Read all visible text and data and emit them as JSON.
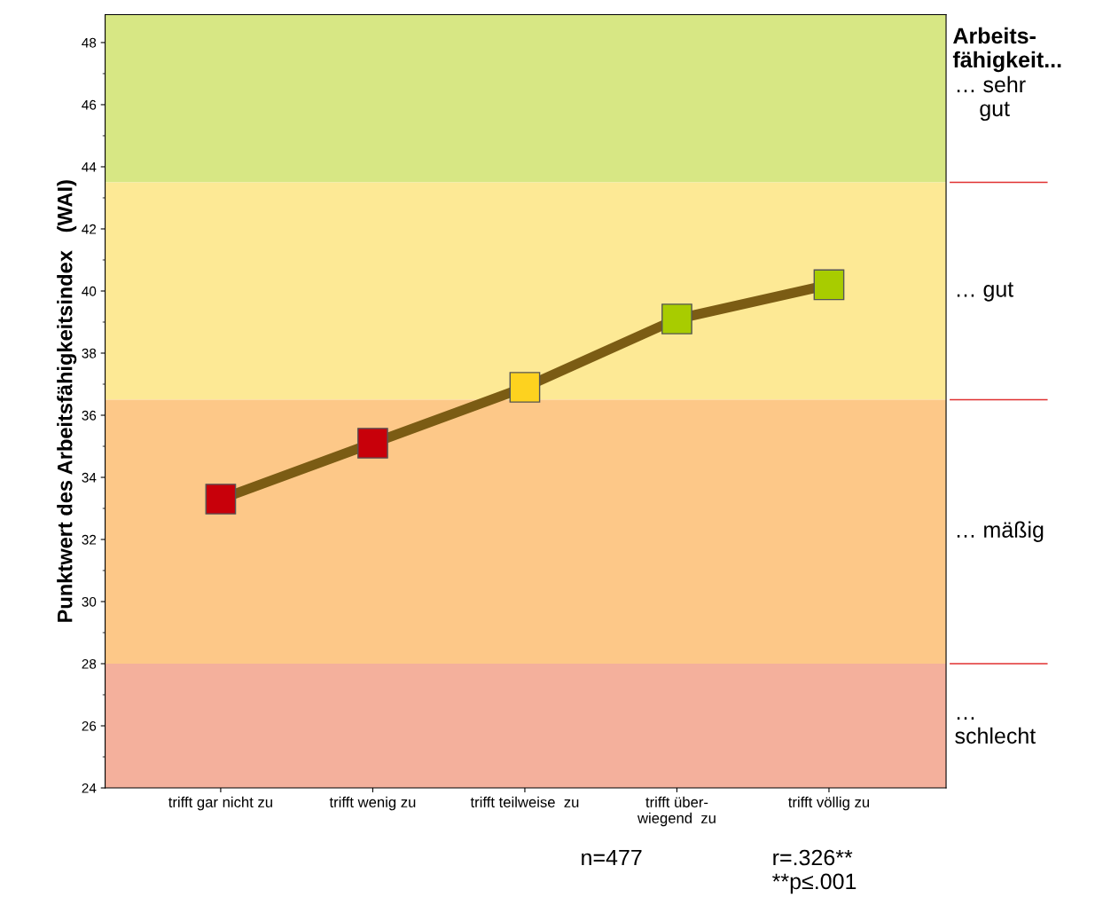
{
  "chart_data": {
    "type": "line",
    "ylabel": "Punktwert des Arbeitsfähigkeitsindex   (WAI)",
    "categories": [
      "trifft gar nicht zu",
      "trifft wenig zu",
      "trifft teilweise  zu",
      "trifft über-\nwiegend  zu",
      "trifft völlig zu"
    ],
    "series": [
      {
        "color": "#7b5c14",
        "values": [
          33.3,
          35.1,
          36.9,
          39.1,
          40.2
        ],
        "colors": [
          "#c8000a",
          "#c8000a",
          "#fdd21f",
          "#a8cc00",
          "#a8cc00"
        ]
      }
    ],
    "ylim": [
      24,
      48.9
    ],
    "yticks": [
      24,
      26,
      28,
      30,
      32,
      34,
      36,
      38,
      40,
      42,
      44,
      46,
      48
    ],
    "bands": [
      {
        "axis": "y",
        "from": 43.5,
        "to": 48.9,
        "label": "… sehr\n    gut",
        "color": "#d7e784"
      },
      {
        "axis": "y",
        "from": 36.5,
        "to": 43.5,
        "label": "… gut",
        "color": "#fde995"
      },
      {
        "axis": "y",
        "from": 28,
        "to": 36.5,
        "label": "… mäßig",
        "color": "#fdc888"
      },
      {
        "axis": "y",
        "from": 24,
        "to": 28,
        "label": "…\nschlecht",
        "color": "#f4b09c"
      }
    ],
    "annotations": [
      "Arbeits-\nfähigkeit...",
      "n=477",
      "r=.326**\n**p≤.001"
    ],
    "marker": "square",
    "line_style": "solid",
    "grid": false,
    "legend": false
  }
}
